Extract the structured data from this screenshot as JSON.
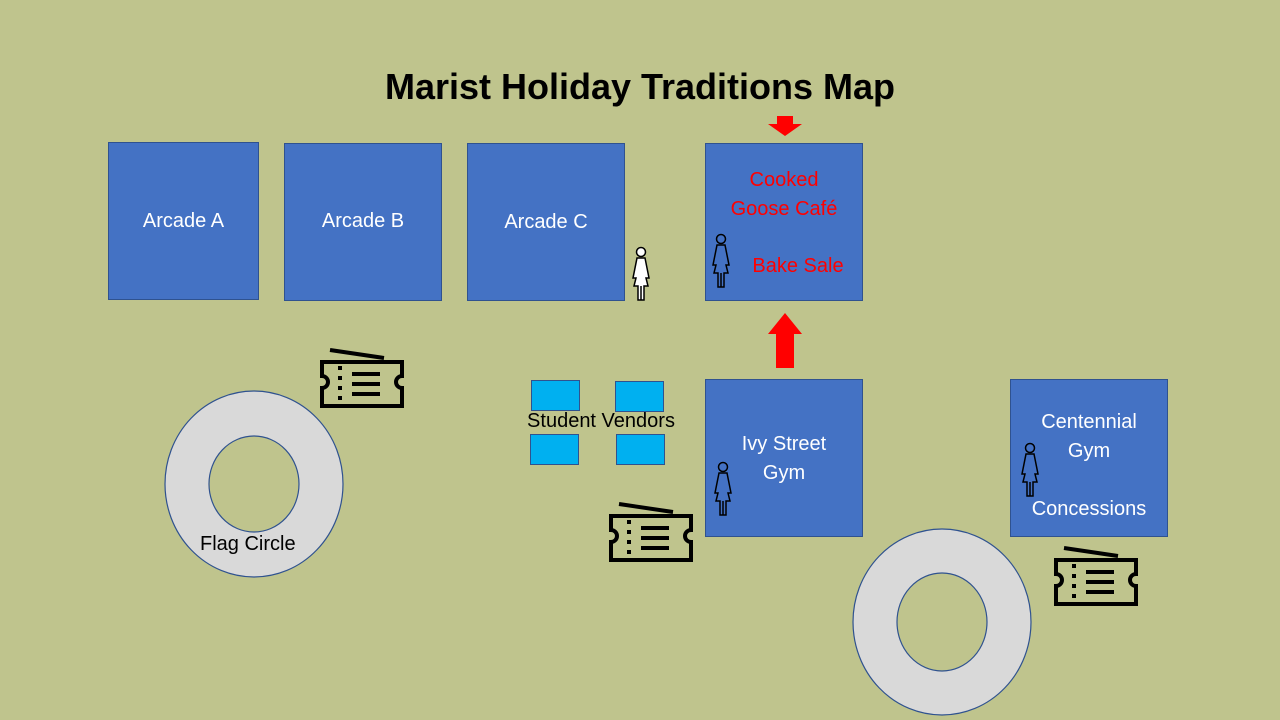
{
  "map": {
    "title": "Marist Holiday Traditions Map",
    "buildings": {
      "arcade_a": "Arcade A",
      "arcade_b": "Arcade B",
      "arcade_c": "Arcade C",
      "cafe_line1": "Cooked",
      "cafe_line2": "Goose Café",
      "bake_sale": "Bake Sale",
      "ivy_line1": "Ivy Street",
      "ivy_line2": "Gym",
      "cent_line1": "Centennial",
      "cent_line2": "Gym",
      "concessions": "Concessions"
    },
    "student_vendors": "Student Vendors",
    "flag_circle": "Flag Circle",
    "colors": {
      "background": "#bfc48d",
      "building": "#4472c4",
      "vendor_stall": "#00b0f0",
      "highlight_text": "#ff0000",
      "arrow": "#ff0000",
      "circle": "#d9d9d9"
    },
    "icons": [
      "restroom-woman-icon",
      "ticket-icon",
      "arrow-up-icon",
      "arrow-down-icon"
    ]
  }
}
